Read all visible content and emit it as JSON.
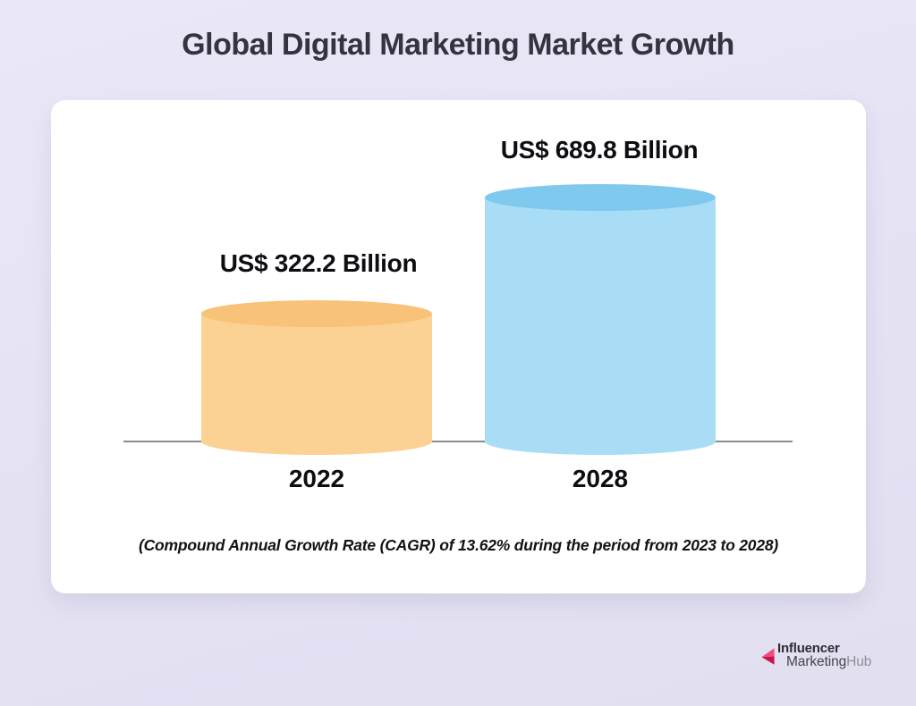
{
  "title": "Global Digital Marketing Market Growth",
  "chart_data": {
    "type": "bar",
    "title": "Global Digital Marketing Market Growth",
    "categories": [
      "2022",
      "2028"
    ],
    "values": [
      322.2,
      689.8
    ],
    "unit": "US$ Billion",
    "value_labels": [
      "US$ 322.2 Billion",
      "US$ 689.8 Billion"
    ],
    "footnote": "(Compound Annual Growth Rate (CAGR) of 13.62% during the period from 2023 to 2028)",
    "bar_colors": [
      {
        "body": "#FBD294",
        "top": "#F8C278"
      },
      {
        "body": "#A9DDF6",
        "top": "#7FC9EF"
      }
    ],
    "axis_color": "#8C8C8C",
    "xlabel": "",
    "ylabel": "",
    "grid": false,
    "legend": "none"
  },
  "logo": {
    "line1": "Influencer",
    "line2_dark": "Marketing",
    "line2_light": "Hub",
    "arrow_color_light": "#EE4D7A",
    "arrow_color_dark": "#C9134F"
  },
  "colors": {
    "background": "#E5E3F4",
    "card": "#FFFFFF",
    "title_text": "#34333F",
    "label_text": "#0E0E12"
  }
}
